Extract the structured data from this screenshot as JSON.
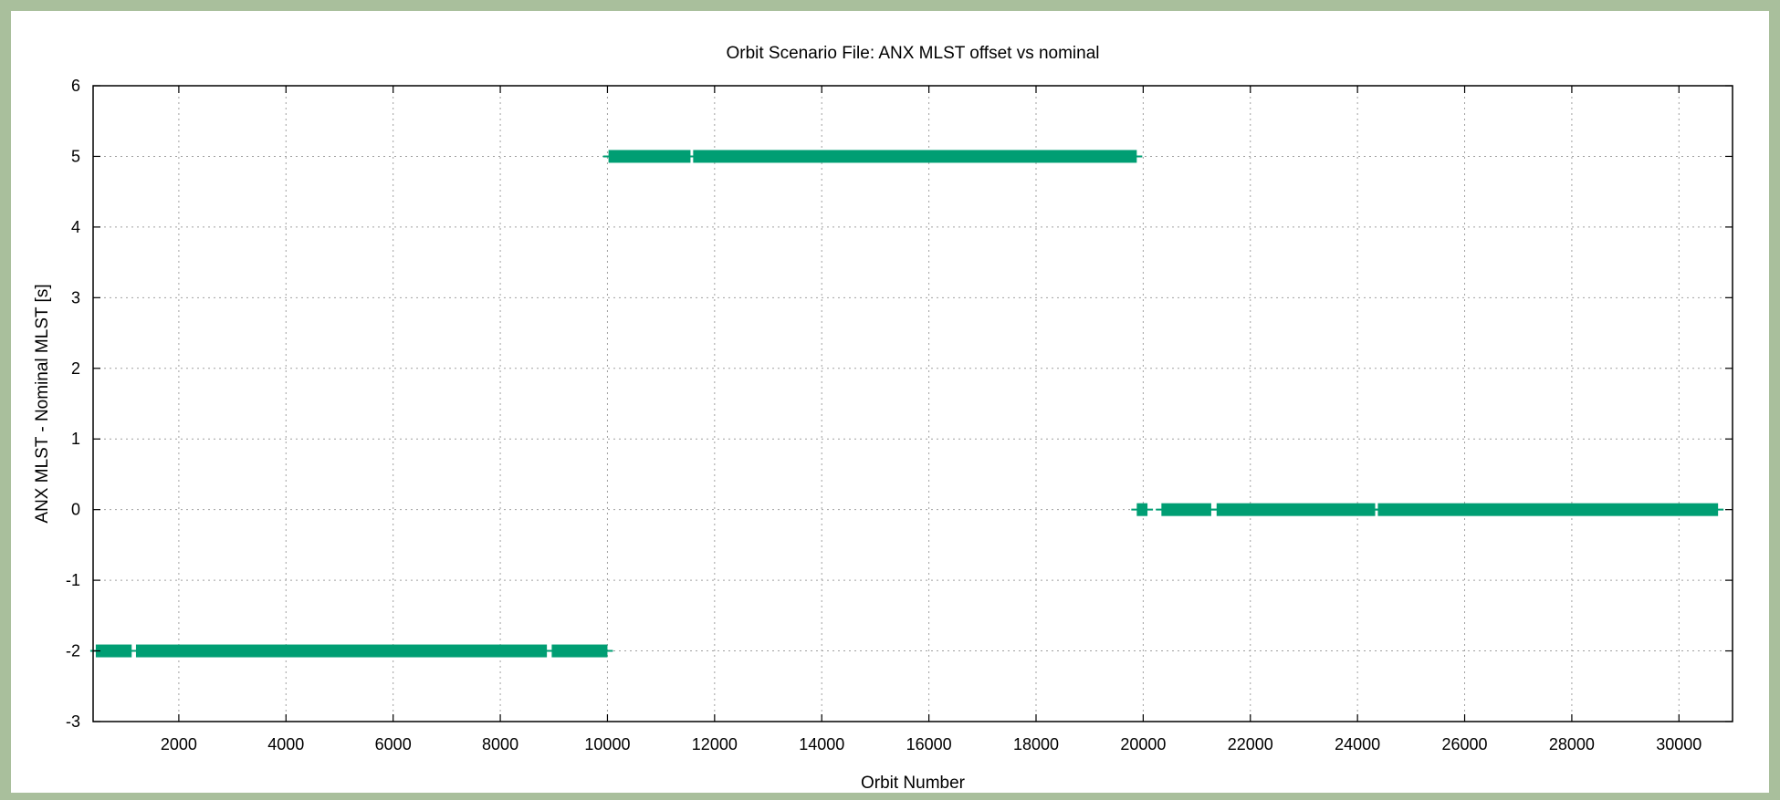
{
  "chart_data": {
    "type": "scatter",
    "title": "Orbit Scenario File: ANX MLST offset vs nominal",
    "xlabel": "Orbit Number",
    "ylabel": "ANX MLST - Nominal MLST [s]",
    "xlim": [
      400,
      31000
    ],
    "ylim": [
      -3,
      6
    ],
    "xticks": [
      2000,
      4000,
      6000,
      8000,
      10000,
      12000,
      14000,
      16000,
      18000,
      20000,
      22000,
      24000,
      26000,
      28000,
      30000
    ],
    "yticks": [
      -3,
      -2,
      -1,
      0,
      1,
      2,
      3,
      4,
      5,
      6
    ],
    "grid": true,
    "legend": "none",
    "color": "#009e73",
    "segments": [
      {
        "x_start": 450,
        "x_end": 1120,
        "y": -2
      },
      {
        "x_start": 1200,
        "x_end": 8870,
        "y": -2
      },
      {
        "x_start": 8960,
        "x_end": 10000,
        "y": -2
      },
      {
        "x_start": 10020,
        "x_end": 11550,
        "y": 5
      },
      {
        "x_start": 11600,
        "x_end": 19880,
        "y": 5
      },
      {
        "x_start": 19880,
        "x_end": 20080,
        "y": 0
      },
      {
        "x_start": 20340,
        "x_end": 21270,
        "y": 0
      },
      {
        "x_start": 21370,
        "x_end": 24330,
        "y": 0
      },
      {
        "x_start": 24380,
        "x_end": 30730,
        "y": 0
      }
    ]
  }
}
